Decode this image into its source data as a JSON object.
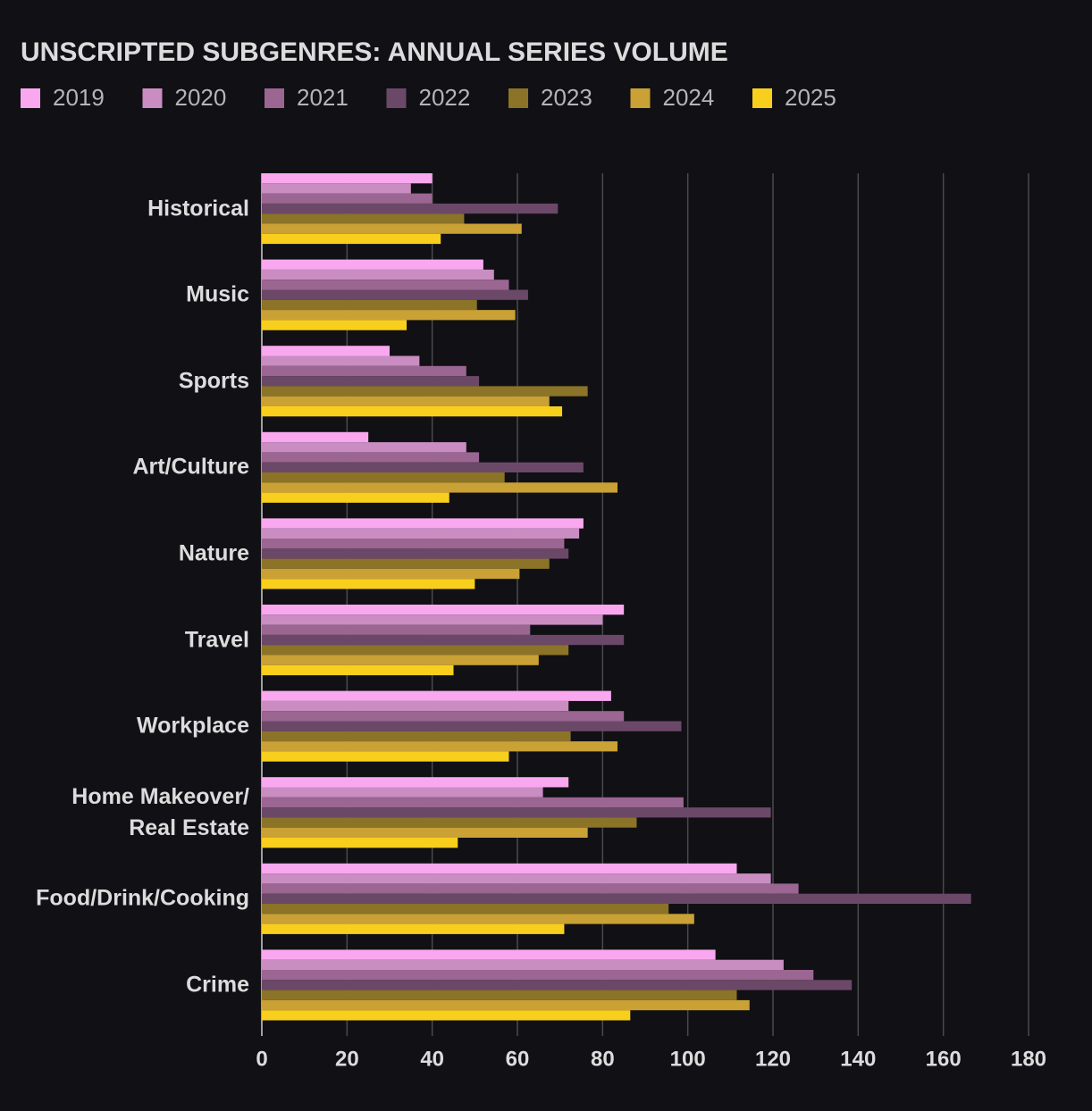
{
  "chart_data": {
    "type": "barh",
    "title": "UNSCRIPTED SUBGENRES: ANNUAL SERIES VOLUME",
    "categories": [
      "Historical",
      "Music",
      "Sports",
      "Art/Culture",
      "Nature",
      "Travel",
      "Workplace",
      "Home Makeover/\nReal Estate",
      "Food/Drink/Cooking",
      "Crime"
    ],
    "series": [
      {
        "name": "2019",
        "color": "#f9a8ef",
        "values": [
          40,
          52,
          30,
          25,
          75.5,
          85,
          82,
          72,
          111.5,
          106.5
        ]
      },
      {
        "name": "2020",
        "color": "#c98dc2",
        "values": [
          35,
          54.5,
          37,
          48,
          74.5,
          80,
          72,
          66,
          119.5,
          122.5
        ]
      },
      {
        "name": "2021",
        "color": "#9b6692",
        "values": [
          40,
          58,
          48,
          51,
          71,
          63,
          85,
          99,
          126,
          129.5
        ]
      },
      {
        "name": "2022",
        "color": "#6b4868",
        "values": [
          69.5,
          62.5,
          51,
          75.5,
          72,
          85,
          98.5,
          119.5,
          166.5,
          138.5
        ]
      },
      {
        "name": "2023",
        "color": "#8b7328",
        "values": [
          47.5,
          50.5,
          76.5,
          57,
          67.5,
          72,
          72.5,
          88,
          95.5,
          111.5
        ]
      },
      {
        "name": "2024",
        "color": "#c9a135",
        "values": [
          61,
          59.5,
          67.5,
          83.5,
          60.5,
          65,
          83.5,
          76.5,
          101.5,
          114.5
        ]
      },
      {
        "name": "2025",
        "color": "#f9cf1e",
        "values": [
          42,
          34,
          70.5,
          44,
          50,
          45,
          58,
          46,
          71,
          86.5
        ]
      }
    ],
    "xlim": [
      0,
      180
    ],
    "xticks": [
      0,
      20,
      40,
      60,
      80,
      100,
      120,
      140,
      160,
      180
    ],
    "grid": true
  }
}
